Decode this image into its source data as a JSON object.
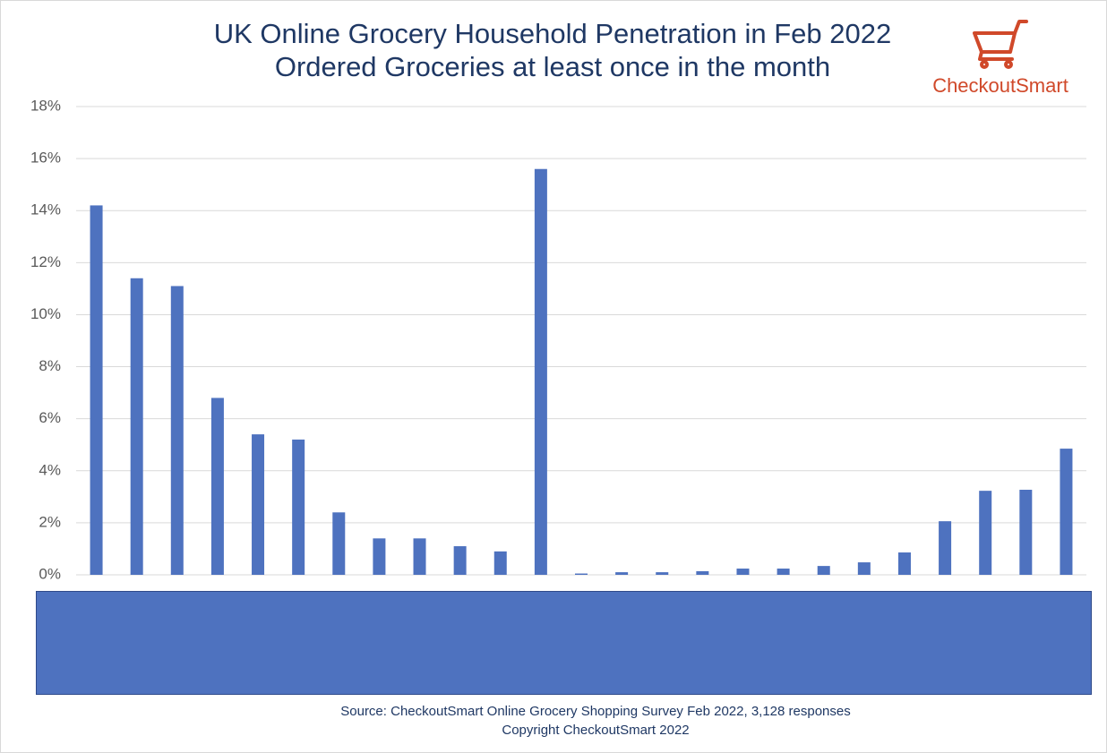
{
  "chart_data": {
    "type": "bar",
    "title": "UK Online Grocery Household Penetration in Feb 2022",
    "subtitle": "Ordered Groceries at least once in the month",
    "logo": "CheckoutSmart",
    "source": "Source: CheckoutSmart Online Grocery Shopping Survey Feb 2022, 3,128 responses",
    "copyright": "Copyright CheckoutSmart 2022",
    "categories": [
      null,
      null,
      null,
      null,
      null,
      null,
      null,
      null,
      null,
      null,
      null,
      null,
      null,
      null,
      null,
      null,
      null,
      null,
      null,
      null,
      null,
      null,
      null,
      null,
      null
    ],
    "values": [
      14.2,
      11.4,
      11.1,
      6.8,
      5.4,
      5.2,
      2.4,
      1.4,
      1.4,
      1.1,
      0.9,
      15.6,
      0.05,
      0.1,
      0.1,
      0.14,
      0.24,
      0.24,
      0.34,
      0.48,
      0.86,
      2.06,
      3.23,
      3.27,
      4.85
    ],
    "color": "#4e72bf",
    "ylim": [
      0,
      18
    ],
    "yticks": [
      {
        "value": 0,
        "label": "0%"
      },
      {
        "value": 2,
        "label": "2%"
      },
      {
        "value": 4,
        "label": "4%"
      },
      {
        "value": 6,
        "label": "6%"
      },
      {
        "value": 8,
        "label": "8%"
      },
      {
        "value": 10,
        "label": "10%"
      },
      {
        "value": 12,
        "label": "12%"
      },
      {
        "value": 14,
        "label": "14%"
      },
      {
        "value": 16,
        "label": "16%"
      },
      {
        "value": 18,
        "label": "18%"
      }
    ],
    "grid": true
  }
}
